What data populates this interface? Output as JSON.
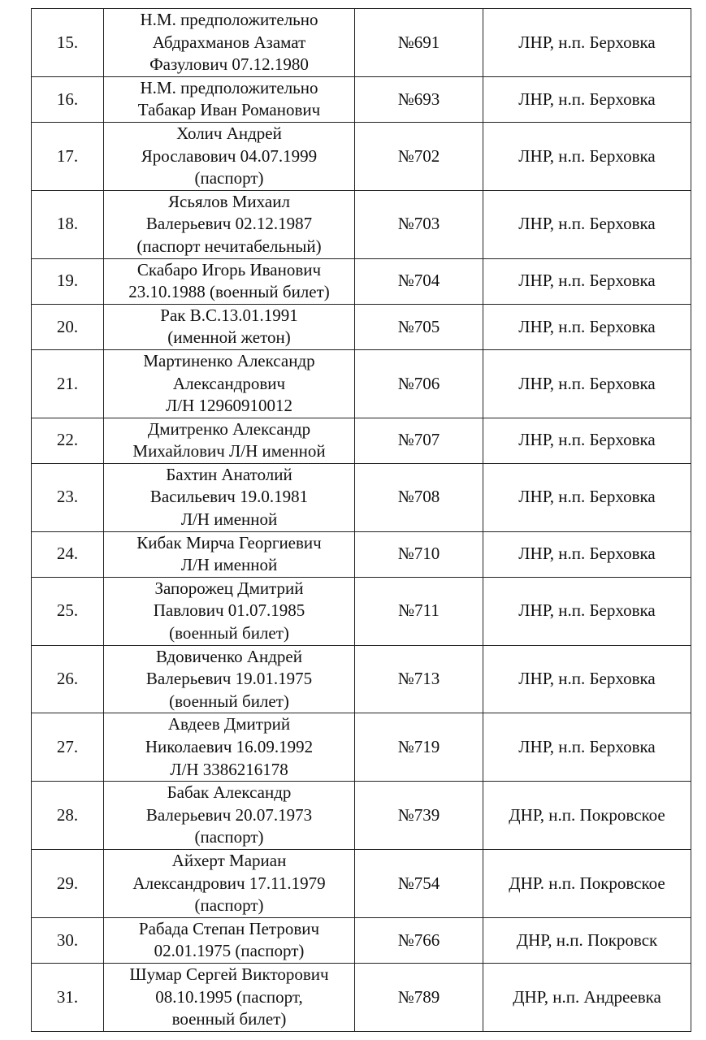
{
  "table": {
    "rows": [
      [
        "15.",
        "Н.М. предположительно\nАбдрахманов Азамат\nФазулович 07.12.1980",
        "№691",
        "ЛНР, н.п. Берховка"
      ],
      [
        "16.",
        "Н.М. предположительно\nТабакар Иван Романович",
        "№693",
        "ЛНР, н.п. Берховка"
      ],
      [
        "17.",
        "Холич Андрей\nЯрославович 04.07.1999\n(паспорт)",
        "№702",
        "ЛНР, н.п. Берховка"
      ],
      [
        "18.",
        "Ясьялов Михаил\nВалерьевич 02.12.1987\n(паспорт нечитабельный)",
        "№703",
        "ЛНР, н.п. Берховка"
      ],
      [
        "19.",
        "Скабаро Игорь Иванович\n23.10.1988 (военный билет)",
        "№704",
        "ЛНР, н.п. Берховка"
      ],
      [
        "20.",
        "Рак В.С.13.01.1991\n(именной жетон)",
        "№705",
        "ЛНР, н.п. Берховка"
      ],
      [
        "21.",
        "Мартиненко Александр\nАлександрович\nЛ/Н 12960910012",
        "№706",
        "ЛНР, н.п. Берховка"
      ],
      [
        "22.",
        "Дмитренко Александр\nМихайлович Л/Н именной",
        "№707",
        "ЛНР, н.п. Берховка"
      ],
      [
        "23.",
        "Бахтин Анатолий\nВасильевич 19.0.1981\nЛ/Н именной",
        "№708",
        "ЛНР, н.п. Берховка"
      ],
      [
        "24.",
        "Кибак Мирча Георгиевич\nЛ/Н именной",
        "№710",
        "ЛНР, н.п. Берховка"
      ],
      [
        "25.",
        "Запорожец Дмитрий\nПавлович 01.07.1985\n(военный билет)",
        "№711",
        "ЛНР, н.п. Берховка"
      ],
      [
        "26.",
        "Вдовиченко Андрей\nВалерьевич 19.01.1975\n(военный билет)",
        "№713",
        "ЛНР, н.п. Берховка"
      ],
      [
        "27.",
        "Авдеев Дмитрий\nНиколаевич 16.09.1992\nЛ/Н 3386216178",
        "№719",
        "ЛНР, н.п. Берховка"
      ],
      [
        "28.",
        "Бабак Александр\nВалерьевич 20.07.1973\n(паспорт)",
        "№739",
        "ДНР, н.п. Покровское"
      ],
      [
        "29.",
        "Айхерт Мариан\nАлександрович 17.11.1979\n(паспорт)",
        "№754",
        "ДНР. н.п. Покровское"
      ],
      [
        "30.",
        "Рабада Степан Петрович\n02.01.1975 (паспорт)",
        "№766",
        "ДНР, н.п. Покровск"
      ],
      [
        "31.",
        "Шумар Сергей Викторович\n08.10.1995 (паспорт,\nвоенный билет)",
        "№789",
        "ДНР, н.п. Андреевка"
      ]
    ]
  }
}
